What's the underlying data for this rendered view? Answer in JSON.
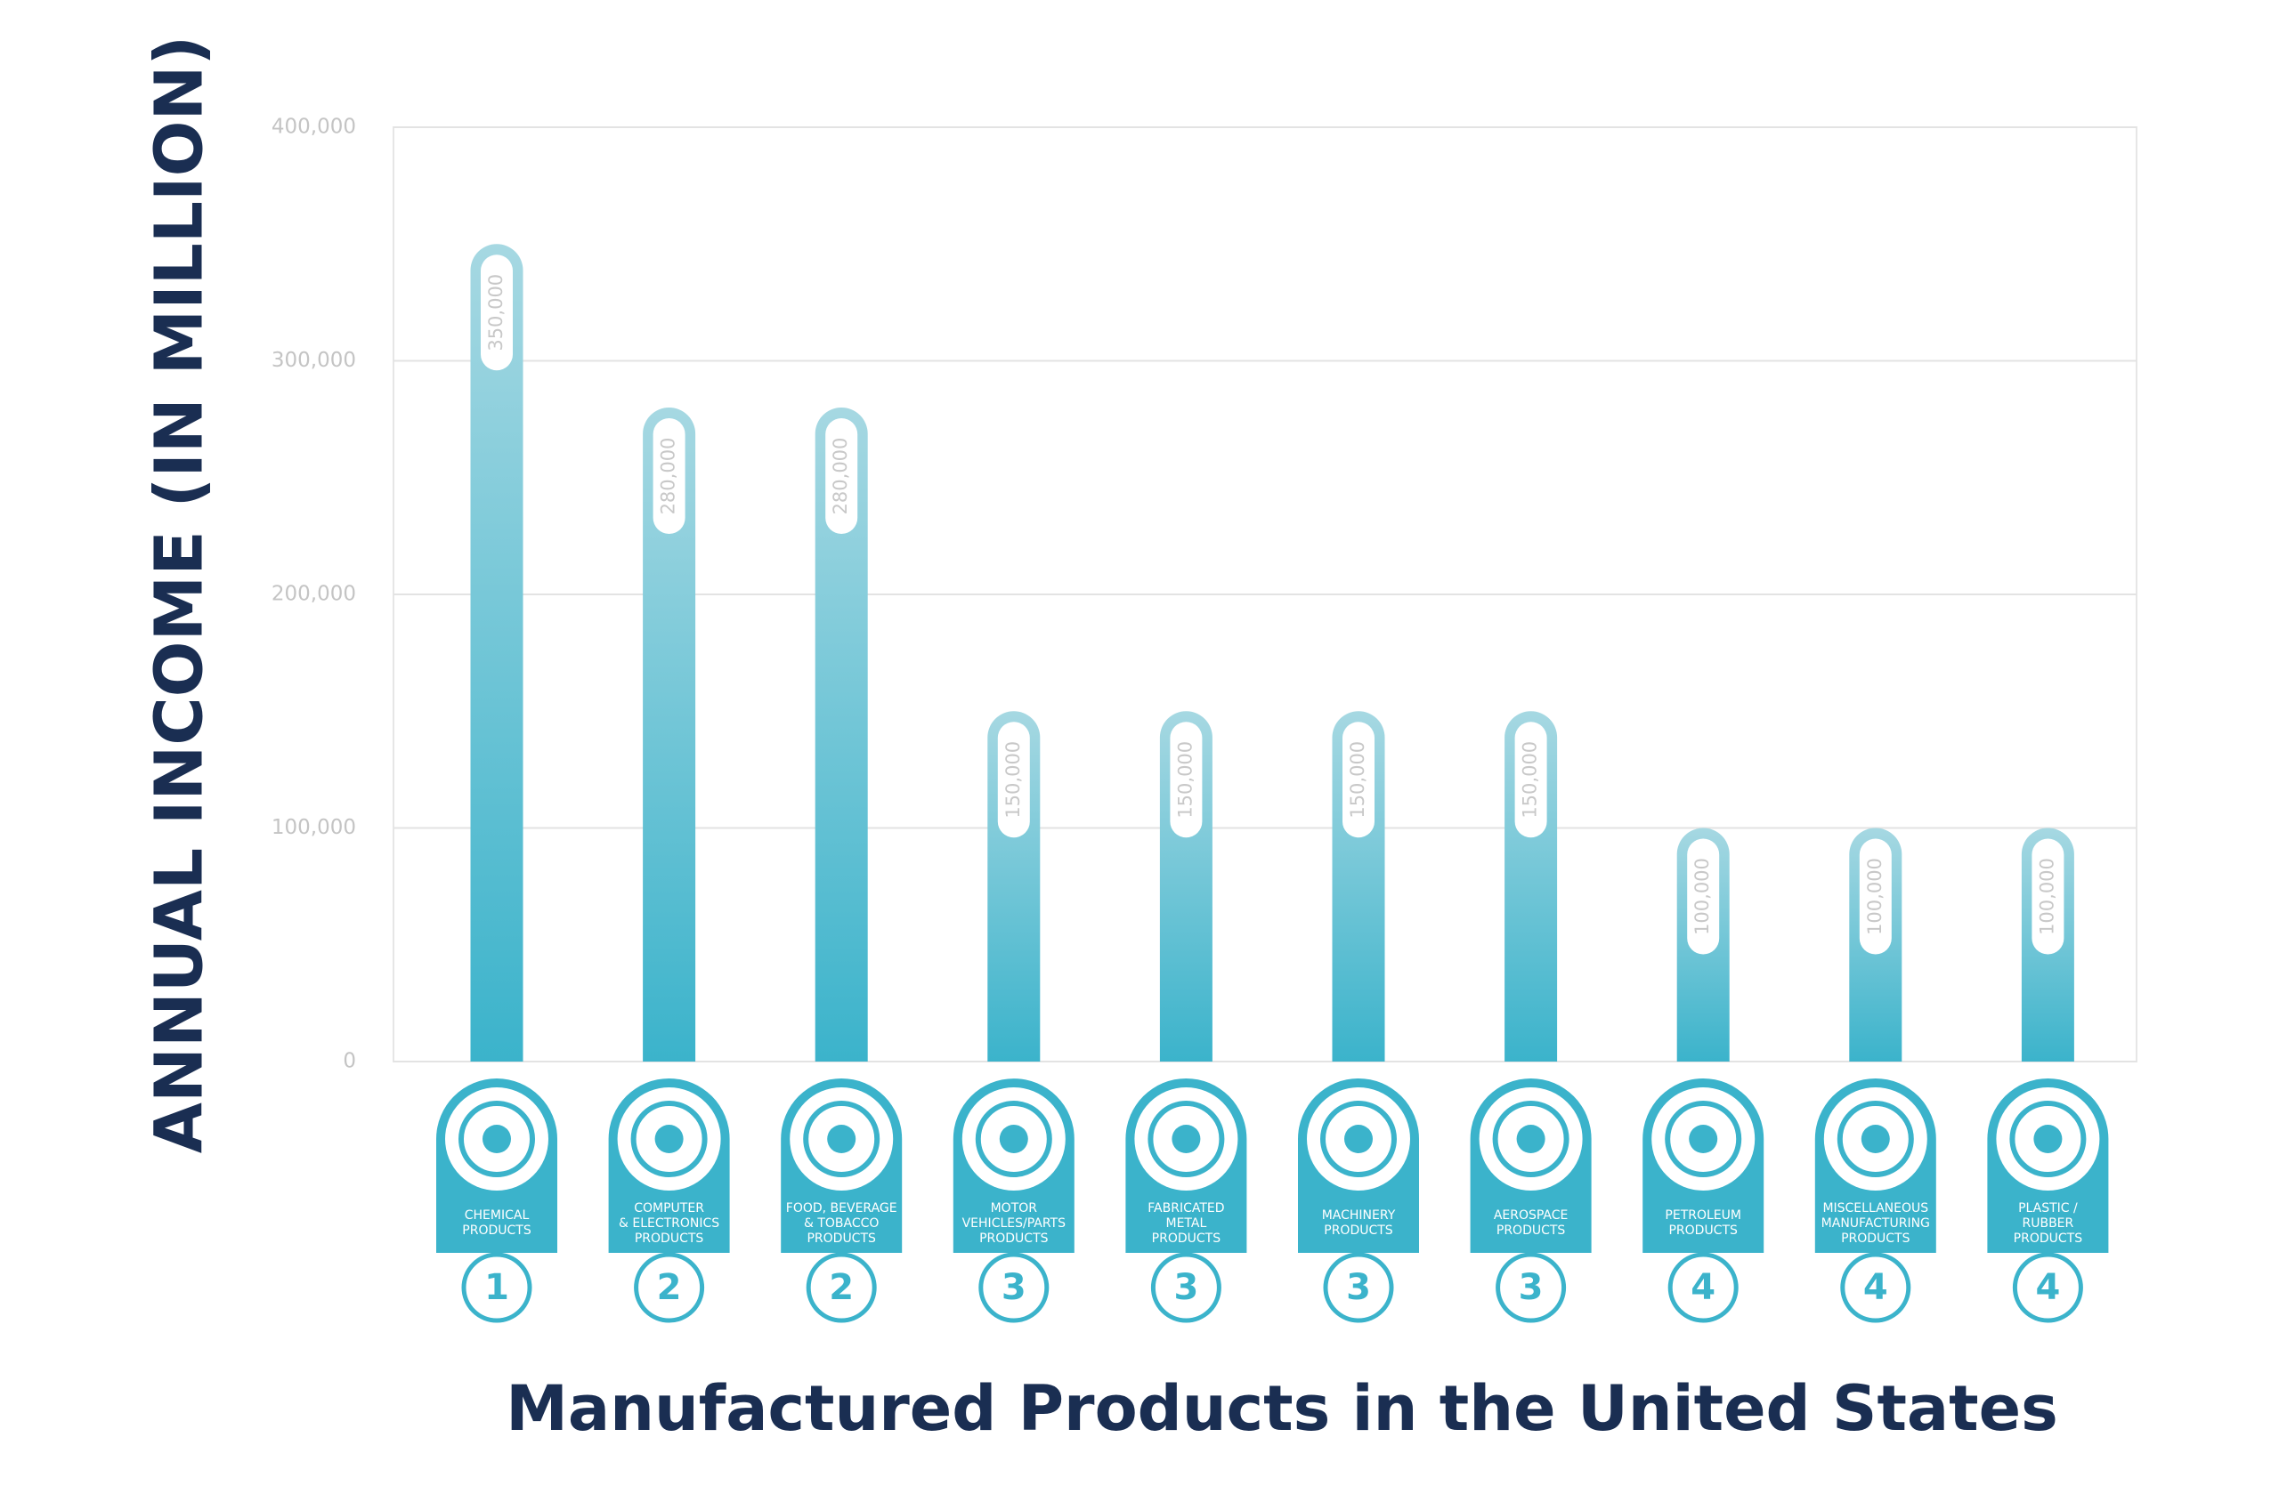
{
  "chart_data": {
    "type": "bar",
    "title": "Manufactured Products in the United States",
    "y_label": "ANNUAL INCOME (IN MILLION)",
    "categories": [
      "CHEMICAL\nPRODUCTS",
      "COMPUTER\n& ELECTRONICS\nPRODUCTS",
      "FOOD, BEVERAGE\n& TOBACCO\nPRODUCTS",
      "MOTOR\nVEHICLES/PARTS\nPRODUCTS",
      "FABRICATED\nMETAL\nPRODUCTS",
      "MACHINERY\nPRODUCTS",
      "AEROSPACE\nPRODUCTS",
      "PETROLEUM\nPRODUCTS",
      "MISCELLANEOUS\nMANUFACTURING\nPRODUCTS",
      "PLASTIC /\nRUBBER\nPRODUCTS"
    ],
    "values": [
      350000,
      280000,
      280000,
      150000,
      150000,
      150000,
      150000,
      100000,
      100000,
      100000
    ],
    "value_labels": [
      "350,000",
      "280,000",
      "280,000",
      "150,000",
      "150,000",
      "150,000",
      "150,000",
      "100,000",
      "100,000",
      "100,000"
    ],
    "ranks": [
      1,
      2,
      2,
      3,
      3,
      3,
      3,
      4,
      4,
      4
    ],
    "color": "#3bb3cb",
    "ylim": [
      0,
      400000
    ],
    "yticks": [
      0,
      {
        "value": 100000,
        "label": "100,000"
      },
      {
        "value": 200000,
        "label": "200,000"
      },
      {
        "value": 300000,
        "label": "300,000"
      },
      {
        "value": 400000,
        "label": "400,000"
      }
    ],
    "grid": true
  }
}
